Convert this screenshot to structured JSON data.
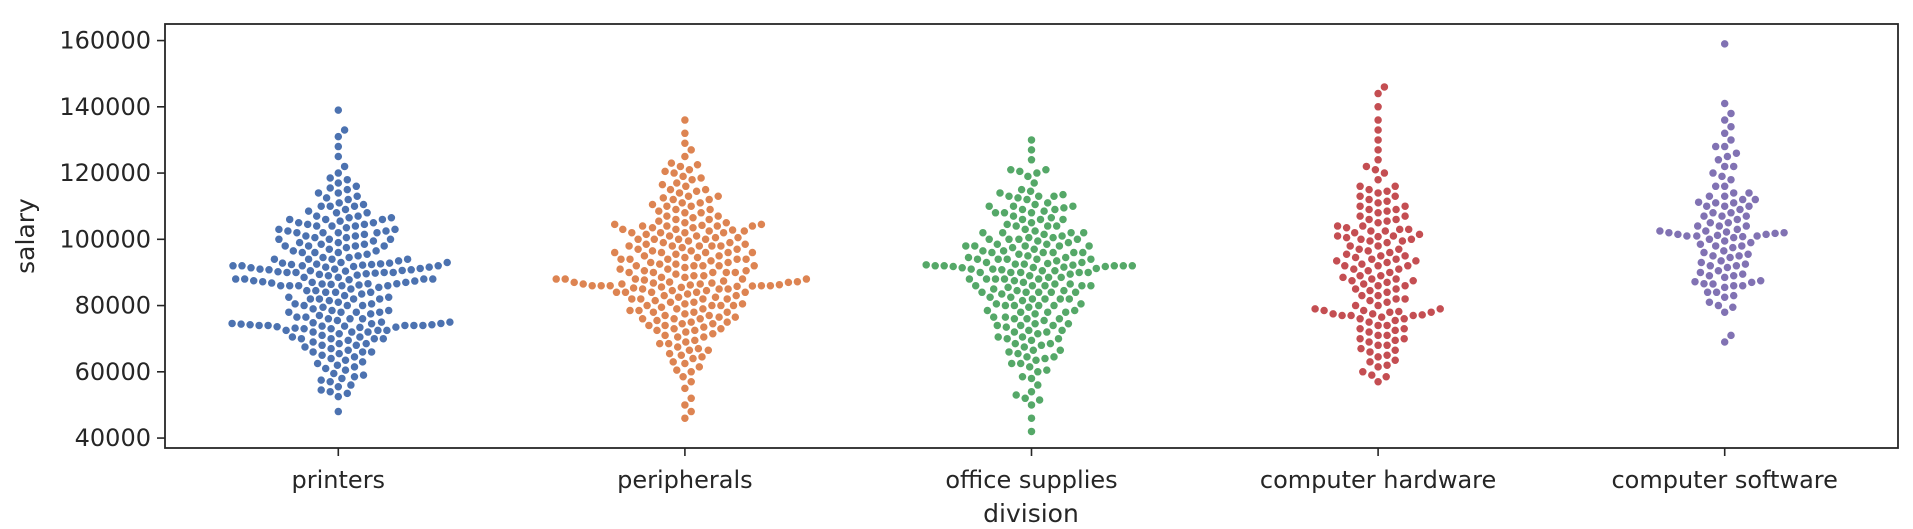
{
  "chart_data": {
    "type": "scatter",
    "style": "swarm",
    "xlabel": "division",
    "ylabel": "salary",
    "ylim": [
      37000,
      165000
    ],
    "yticks": [
      40000,
      60000,
      80000,
      100000,
      120000,
      140000,
      160000
    ],
    "ytick_labels": [
      "40000",
      "60000",
      "80000",
      "100000",
      "120000",
      "140000",
      "160000"
    ],
    "grid": false,
    "legend": "none",
    "categories": [
      "printers",
      "peripherals",
      "office supplies",
      "computer hardware",
      "computer software"
    ],
    "series": [
      {
        "color": "#4c72b0",
        "values": [
          48000,
          52500,
          53500,
          54500,
          56000,
          57500,
          58500,
          59500,
          60500,
          61500,
          62500,
          63000,
          64000,
          64500,
          65500,
          66000,
          67000,
          67500,
          68000,
          68500,
          69000,
          69500,
          70000,
          70500,
          71000,
          71500,
          72000,
          72500,
          73000,
          73200,
          73400,
          73600,
          73800,
          74000,
          74200,
          74400,
          74600,
          74800,
          75000,
          75500,
          76000,
          76500,
          77000,
          77500,
          78000,
          78500,
          79000,
          79500,
          80000,
          80500,
          81000,
          81500,
          82000,
          82500,
          83000,
          83500,
          84000,
          84500,
          85000,
          85500,
          86000,
          86200,
          86400,
          86600,
          86800,
          87000,
          87200,
          87500,
          88000,
          88500,
          89000,
          89200,
          89400,
          89600,
          89800,
          90000,
          90200,
          90400,
          90600,
          90800,
          91000,
          91200,
          91400,
          91600,
          91800,
          92000,
          92200,
          92400,
          92600,
          92800,
          93000,
          93500,
          94000,
          94500,
          95000,
          95500,
          96000,
          96500,
          97000,
          97500,
          98000,
          98500,
          99000,
          99500,
          100000,
          100500,
          101000,
          101500,
          102000,
          102500,
          103000,
          103500,
          104000,
          104500,
          105000,
          105500,
          106000,
          106500,
          107000,
          108000,
          109000,
          110000,
          111000,
          112000,
          113000,
          114000,
          115000,
          116000,
          117000,
          118000,
          120000,
          122000,
          125000,
          128000,
          131000,
          133000,
          139000,
          54000,
          55500,
          57000,
          59000,
          61000,
          63500,
          65000,
          66500,
          68500,
          70500,
          72500,
          74500,
          76500,
          78500,
          80500,
          82500,
          84500,
          86500,
          88500,
          90500,
          92500,
          94500,
          96500,
          98500,
          100500,
          102500,
          104500,
          106500,
          108500,
          110500,
          112500,
          115500,
          118500,
          58000,
          62000,
          66000,
          70000,
          74000,
          78000,
          82000,
          86000,
          90000,
          94000,
          98000,
          102000,
          106000,
          110000,
          114000,
          70000,
          72000,
          74000,
          76000,
          78000,
          80000,
          82000,
          84000,
          86000,
          88000,
          90000,
          92000,
          94000,
          96000,
          98000,
          100000,
          102000,
          104000,
          106000,
          108000,
          110000,
          66000,
          68000,
          70000,
          72000,
          74000,
          76000,
          78000,
          80000,
          82000,
          84000,
          86000,
          88000,
          90000,
          92000,
          94000,
          96000,
          98000,
          100000,
          102000,
          104000,
          73800,
          74200,
          86600,
          87400,
          91600,
          92400,
          73000,
          75000,
          87000,
          91000,
          93000,
          72500,
          74000,
          86000,
          88000,
          92000,
          73500,
          90800,
          74600,
          87800,
          92800,
          101000,
          103000,
          105000,
          107000,
          99000
        ]
      },
      {
        "color": "#dd8452",
        "values": [
          46000,
          48000,
          50000,
          52000,
          55000,
          57000,
          58500,
          60000,
          61500,
          63000,
          64000,
          65500,
          66500,
          67500,
          68500,
          69500,
          70500,
          71500,
          72500,
          73000,
          73500,
          74000,
          74500,
          75000,
          75500,
          76000,
          76500,
          77000,
          77500,
          78000,
          78500,
          79000,
          79500,
          80000,
          80500,
          81000,
          81500,
          82000,
          82500,
          83000,
          83500,
          84000,
          84500,
          85000,
          85300,
          85600,
          85900,
          86200,
          86500,
          86800,
          87100,
          87400,
          87700,
          88000,
          88500,
          89000,
          89500,
          90000,
          90500,
          91000,
          91500,
          92000,
          92500,
          93000,
          93500,
          94000,
          94500,
          95000,
          95500,
          96000,
          96500,
          97000,
          97500,
          98000,
          98500,
          99000,
          99500,
          100000,
          100500,
          101000,
          101500,
          102000,
          102500,
          103000,
          103500,
          104000,
          104500,
          105000,
          105500,
          106000,
          107000,
          108000,
          109000,
          110000,
          111000,
          112000,
          113000,
          114000,
          115000,
          116000,
          117000,
          118000,
          119000,
          120000,
          121000,
          122000,
          123000,
          125000,
          127000,
          129000,
          132000,
          136000,
          60500,
          62500,
          64500,
          66500,
          68500,
          70500,
          72500,
          74500,
          76500,
          78500,
          80500,
          82500,
          84500,
          86500,
          88500,
          90500,
          92500,
          94500,
          96500,
          98500,
          100500,
          102500,
          104500,
          106500,
          108500,
          110500,
          112500,
          114500,
          116500,
          118500,
          120500,
          122500,
          65000,
          67000,
          69000,
          71000,
          73000,
          75000,
          77000,
          79000,
          81000,
          83000,
          85000,
          87000,
          89000,
          91000,
          93000,
          95000,
          97000,
          99000,
          101000,
          103000,
          105000,
          107000,
          109000,
          111000,
          113000,
          115000,
          72000,
          74000,
          76000,
          78000,
          80000,
          82000,
          84000,
          86000,
          88000,
          90000,
          92000,
          94000,
          96000,
          98000,
          100000,
          102000,
          104000,
          106000,
          108000,
          110000,
          112000,
          76000,
          78000,
          80000,
          82000,
          84000,
          86000,
          88000,
          90000,
          92000,
          94000,
          96000,
          98000,
          100000,
          102000,
          104000,
          80000,
          82000,
          84000,
          86000,
          88000,
          90000,
          92000,
          94000,
          96000,
          98000,
          100000,
          102000,
          84000,
          86000,
          88000,
          90000,
          92000,
          94000,
          96000,
          98000,
          85500,
          86000,
          86500,
          87000,
          85000,
          86800,
          87200,
          85800,
          86300,
          104000,
          103500,
          102800,
          104200
        ]
      },
      {
        "color": "#55a868",
        "values": [
          42000,
          46000,
          50000,
          52000,
          54000,
          56000,
          58000,
          60000,
          61500,
          62500,
          63500,
          64500,
          65500,
          66500,
          67500,
          68500,
          69500,
          70500,
          71500,
          72500,
          73500,
          74500,
          75500,
          76500,
          77500,
          78500,
          79500,
          80500,
          81500,
          82500,
          83500,
          84000,
          84500,
          85000,
          85500,
          86000,
          86500,
          87000,
          87500,
          88000,
          88500,
          89000,
          89500,
          90000,
          90500,
          91000,
          91200,
          91400,
          91600,
          91800,
          92000,
          92200,
          92500,
          93000,
          93500,
          94000,
          94500,
          95000,
          95500,
          96000,
          96500,
          97000,
          97500,
          98000,
          98500,
          99000,
          99500,
          100000,
          100500,
          101000,
          101500,
          102000,
          103000,
          104000,
          105000,
          106000,
          107000,
          108000,
          109000,
          110000,
          111000,
          112000,
          113000,
          114000,
          115000,
          117000,
          119000,
          121000,
          124000,
          127000,
          130000,
          58500,
          60500,
          62500,
          64500,
          66500,
          68500,
          70500,
          72500,
          74500,
          76500,
          78500,
          80500,
          82500,
          84500,
          86500,
          88500,
          90500,
          92500,
          94500,
          96500,
          98500,
          100500,
          102500,
          104500,
          106500,
          108500,
          110500,
          112500,
          114500,
          64000,
          66000,
          68000,
          70000,
          72000,
          74000,
          76000,
          78000,
          80000,
          82000,
          84000,
          86000,
          88000,
          90000,
          92000,
          94000,
          96000,
          98000,
          100000,
          102000,
          104000,
          106000,
          108000,
          110000,
          113000,
          120000,
          70000,
          72000,
          74000,
          76000,
          78000,
          80000,
          82000,
          84000,
          86000,
          88000,
          90000,
          92000,
          94000,
          96000,
          98000,
          100000,
          102000,
          104000,
          106000,
          108000,
          110000,
          74000,
          76000,
          78000,
          80000,
          82000,
          84000,
          86000,
          88000,
          90000,
          92000,
          94000,
          96000,
          98000,
          100000,
          102000,
          109000,
          113000,
          80000,
          82000,
          84000,
          86000,
          88000,
          90000,
          92000,
          94000,
          96000,
          98000,
          91500,
          92300,
          91000,
          92700,
          90800,
          93000,
          91800,
          113500,
          109500,
          121000,
          120500,
          53000,
          51500
        ]
      },
      {
        "color": "#c44e52",
        "values": [
          57000,
          58500,
          60000,
          61500,
          63000,
          64500,
          66000,
          67000,
          68000,
          69000,
          70000,
          71000,
          72000,
          73000,
          74000,
          75000,
          76000,
          77000,
          77500,
          78000,
          78500,
          79000,
          80000,
          81000,
          82000,
          83000,
          84000,
          85000,
          86000,
          87000,
          88000,
          89000,
          90000,
          91000,
          92000,
          93000,
          94000,
          95000,
          96000,
          97000,
          98000,
          99000,
          100000,
          101000,
          102000,
          103000,
          104000,
          105000,
          106000,
          107000,
          108000,
          109000,
          110000,
          111000,
          112000,
          113000,
          114000,
          115000,
          116000,
          118000,
          120000,
          122000,
          124000,
          127000,
          130000,
          133000,
          136000,
          140000,
          144000,
          146000,
          59000,
          62000,
          65000,
          68000,
          71000,
          74000,
          77000,
          80000,
          83000,
          86000,
          89000,
          92000,
          95000,
          98000,
          101000,
          104000,
          107000,
          110000,
          113000,
          116000,
          121000,
          63500,
          66500,
          69500,
          72500,
          75500,
          78500,
          81500,
          84500,
          87500,
          90500,
          93500,
          96500,
          99500,
          102500,
          105500,
          108500,
          111500,
          114500,
          70000,
          73000,
          76000,
          79000,
          82000,
          85000,
          88000,
          91000,
          94000,
          97000,
          100000,
          103000,
          106000,
          109000,
          76500,
          77000,
          77500,
          78000,
          86500,
          87500,
          88500,
          92500,
          93500,
          94500,
          95500,
          99500,
          100500,
          101500,
          102500,
          103500,
          77200,
          78200,
          92000,
          100800
        ]
      },
      {
        "color": "#8172b3",
        "values": [
          69000,
          71000,
          78000,
          79500,
          81000,
          82500,
          84000,
          85500,
          86500,
          87500,
          88500,
          89500,
          90500,
          91500,
          92500,
          93500,
          94500,
          95500,
          96500,
          97500,
          98500,
          99500,
          100000,
          100500,
          101000,
          101500,
          102000,
          102500,
          103000,
          104000,
          105000,
          106000,
          107000,
          108000,
          109000,
          110000,
          111000,
          112000,
          113000,
          114000,
          116000,
          118000,
          120000,
          122000,
          124000,
          126000,
          128000,
          130000,
          132000,
          134000,
          136000,
          138000,
          141000,
          159000,
          80000,
          83000,
          86000,
          89000,
          92000,
          95000,
          98000,
          101000,
          104000,
          107000,
          110000,
          113000,
          116000,
          119000,
          122000,
          125000,
          128000,
          84000,
          87000,
          90000,
          93000,
          96000,
          99000,
          102000,
          105000,
          108000,
          111000,
          114000,
          86000,
          89000,
          92000,
          95000,
          98000,
          101000,
          104000,
          107000,
          110000,
          101500,
          102500,
          100800,
          101200,
          101800,
          102200,
          86600,
          87200,
          112000,
          111200
        ]
      }
    ]
  }
}
